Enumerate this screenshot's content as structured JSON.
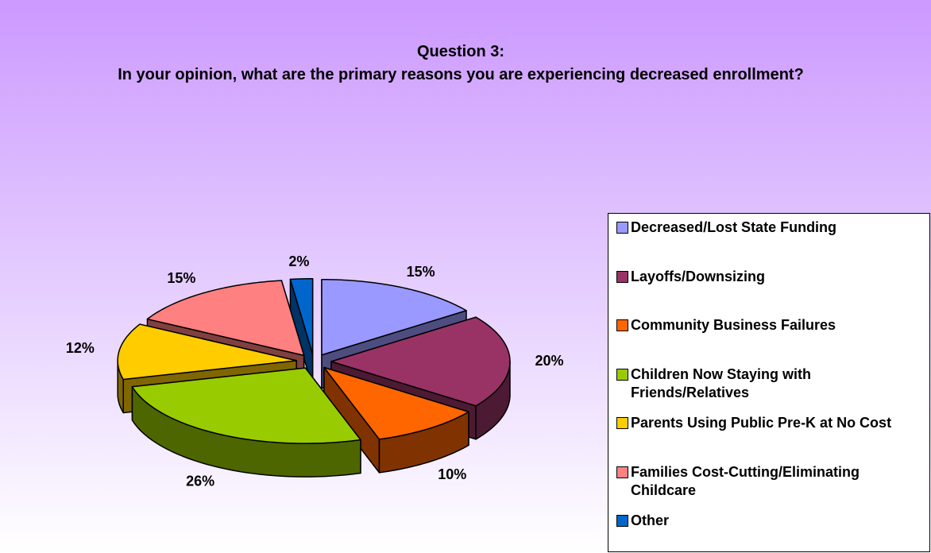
{
  "chart_data": {
    "type": "pie",
    "title": "Question 3:",
    "subtitle": "In your opinion, what are the primary reasons you are experiencing decreased enrollment?",
    "categories": [
      "Decreased/Lost State Funding",
      "Layoffs/Downsizing",
      "Community Business Failures",
      "Children Now Staying with Friends/Relatives",
      "Parents Using Public Pre-K at No Cost",
      "Families Cost-Cutting/Eliminating Childcare",
      "Other"
    ],
    "values": [
      15,
      20,
      10,
      26,
      12,
      15,
      2
    ],
    "value_labels": [
      "15%",
      "20%",
      "10%",
      "26%",
      "12%",
      "15%",
      "2%"
    ],
    "colors": [
      "#9999ff",
      "#993366",
      "#ff6600",
      "#99cc00",
      "#ffcc00",
      "#ff8080",
      "#0066cc"
    ],
    "legend": "right"
  }
}
